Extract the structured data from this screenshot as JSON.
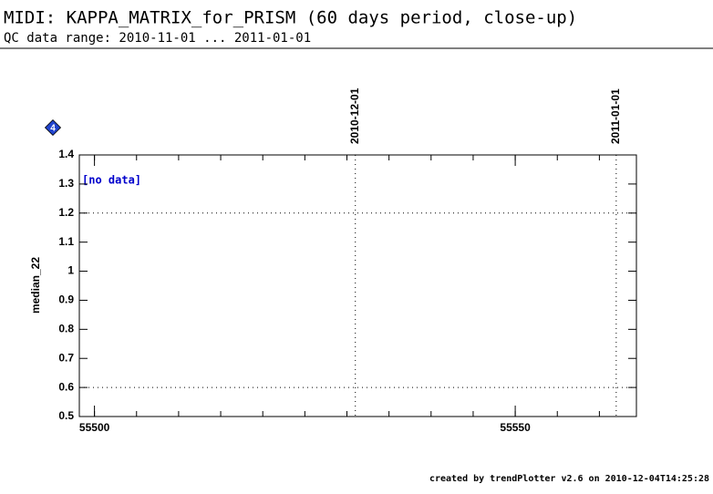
{
  "chart_data": {
    "type": "line",
    "title": "MIDI: KAPPA_MATRIX_for_PRISM (60 days period, close-up)",
    "subtitle": "QC data range: 2010-11-01 ... 2011-01-01",
    "y_label": "median_22",
    "badge": "4",
    "annotation": "[no data]",
    "footer": "created by trendPlotter v2.6 on 2010-12-04T14:25:28",
    "xlim": [
      55498.2,
      55564.4
    ],
    "xticks": [
      55500,
      55550
    ],
    "xminor_ticks": [
      55500,
      55505,
      55510,
      55515,
      55520,
      55525,
      55530,
      55535,
      55540,
      55545,
      55550,
      55555,
      55560
    ],
    "ylim": [
      0.5,
      1.4
    ],
    "yticks": [
      0.5,
      0.6,
      0.7,
      0.8,
      0.9,
      1,
      1.1,
      1.2,
      1.3,
      1.4
    ],
    "hlines": [
      0.6,
      1.2
    ],
    "date_markers": [
      {
        "x": 55531,
        "label": "2010-12-01"
      },
      {
        "x": 55562,
        "label": "2011-01-01"
      }
    ],
    "x": [],
    "values": [],
    "color": "#0000cc"
  }
}
